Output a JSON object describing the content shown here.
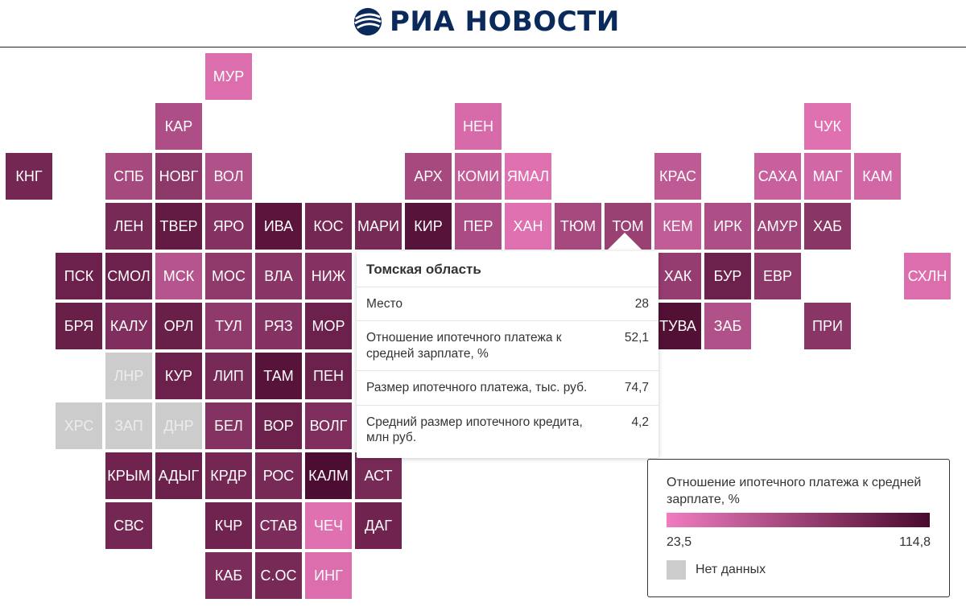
{
  "header": {
    "logo_text": "РИА НОВОСТИ",
    "brand_color": "#0b2a5c"
  },
  "colors": {
    "scale_low": "#f07cc0",
    "scale_high": "#4a0a2e",
    "no_data": "#cccccc"
  },
  "regions": [
    {
      "label": "МУР",
      "col": 4,
      "row": 0,
      "shade": 0.12
    },
    {
      "label": "КАР",
      "col": 3,
      "row": 1,
      "shade": 0.4
    },
    {
      "label": "НЕН",
      "col": 9,
      "row": 1,
      "shade": 0.15
    },
    {
      "label": "ЧУК",
      "col": 16,
      "row": 1,
      "shade": 0.1
    },
    {
      "label": "КНГ",
      "col": 0,
      "row": 2,
      "shade": 0.75
    },
    {
      "label": "СПБ",
      "col": 2,
      "row": 2,
      "shade": 0.45
    },
    {
      "label": "НОВГ",
      "col": 3,
      "row": 2,
      "shade": 0.6
    },
    {
      "label": "ВОЛ",
      "col": 4,
      "row": 2,
      "shade": 0.38
    },
    {
      "label": "АРХ",
      "col": 8,
      "row": 2,
      "shade": 0.45
    },
    {
      "label": "КОМИ",
      "col": 9,
      "row": 2,
      "shade": 0.28
    },
    {
      "label": "ЯМАЛ",
      "col": 10,
      "row": 2,
      "shade": 0.1
    },
    {
      "label": "КРАС",
      "col": 13,
      "row": 2,
      "shade": 0.3
    },
    {
      "label": "САХА",
      "col": 15,
      "row": 2,
      "shade": 0.25
    },
    {
      "label": "МАГ",
      "col": 16,
      "row": 2,
      "shade": 0.18
    },
    {
      "label": "КАМ",
      "col": 17,
      "row": 2,
      "shade": 0.18
    },
    {
      "label": "ЛЕН",
      "col": 2,
      "row": 3,
      "shade": 0.72
    },
    {
      "label": "ТВЕР",
      "col": 3,
      "row": 3,
      "shade": 0.85
    },
    {
      "label": "ЯРО",
      "col": 4,
      "row": 3,
      "shade": 0.65
    },
    {
      "label": "ИВА",
      "col": 5,
      "row": 3,
      "shade": 0.9
    },
    {
      "label": "КОС",
      "col": 6,
      "row": 3,
      "shade": 0.75
    },
    {
      "label": "МАРИ",
      "col": 7,
      "row": 3,
      "shade": 0.72
    },
    {
      "label": "КИР",
      "col": 8,
      "row": 3,
      "shade": 0.92
    },
    {
      "label": "ПЕР",
      "col": 9,
      "row": 3,
      "shade": 0.42
    },
    {
      "label": "ХАН",
      "col": 10,
      "row": 3,
      "shade": 0.1
    },
    {
      "label": "ТЮМ",
      "col": 11,
      "row": 3,
      "shade": 0.45
    },
    {
      "label": "ТОМ",
      "col": 12,
      "row": 3,
      "shade": 0.52
    },
    {
      "label": "КЕМ",
      "col": 13,
      "row": 3,
      "shade": 0.28
    },
    {
      "label": "ИРК",
      "col": 14,
      "row": 3,
      "shade": 0.4
    },
    {
      "label": "АМУР",
      "col": 15,
      "row": 3,
      "shade": 0.5
    },
    {
      "label": "ХАБ",
      "col": 16,
      "row": 3,
      "shade": 0.62
    },
    {
      "label": "ПСК",
      "col": 1,
      "row": 4,
      "shade": 0.8
    },
    {
      "label": "СМОЛ",
      "col": 2,
      "row": 4,
      "shade": 0.8
    },
    {
      "label": "МСК",
      "col": 3,
      "row": 4,
      "shade": 0.35
    },
    {
      "label": "МОС",
      "col": 4,
      "row": 4,
      "shade": 0.58
    },
    {
      "label": "ВЛА",
      "col": 5,
      "row": 4,
      "shade": 0.62
    },
    {
      "label": "НИЖ",
      "col": 6,
      "row": 4,
      "shade": 0.65
    },
    {
      "label": "ХАК",
      "col": 13,
      "row": 4,
      "shade": 0.55
    },
    {
      "label": "БУР",
      "col": 14,
      "row": 4,
      "shade": 0.8
    },
    {
      "label": "ЕВР",
      "col": 15,
      "row": 4,
      "shade": 0.6
    },
    {
      "label": "СХЛН",
      "col": 18,
      "row": 4,
      "shade": 0.12
    },
    {
      "label": "БРЯ",
      "col": 1,
      "row": 5,
      "shade": 0.82
    },
    {
      "label": "КАЛУ",
      "col": 2,
      "row": 5,
      "shade": 0.68
    },
    {
      "label": "ОРЛ",
      "col": 3,
      "row": 5,
      "shade": 0.82
    },
    {
      "label": "ТУЛ",
      "col": 4,
      "row": 5,
      "shade": 0.58
    },
    {
      "label": "РЯЗ",
      "col": 5,
      "row": 5,
      "shade": 0.65
    },
    {
      "label": "МОР",
      "col": 6,
      "row": 5,
      "shade": 0.8
    },
    {
      "label": "ТУВА",
      "col": 13,
      "row": 5,
      "shade": 0.95
    },
    {
      "label": "ЗАБ",
      "col": 14,
      "row": 5,
      "shade": 0.38
    },
    {
      "label": "ПРИ",
      "col": 16,
      "row": 5,
      "shade": 0.62
    },
    {
      "label": "ЛНР",
      "col": 2,
      "row": 6,
      "shade": null
    },
    {
      "label": "КУР",
      "col": 3,
      "row": 6,
      "shade": 0.8
    },
    {
      "label": "ЛИП",
      "col": 4,
      "row": 6,
      "shade": 0.72
    },
    {
      "label": "ТАМ",
      "col": 5,
      "row": 6,
      "shade": 0.92
    },
    {
      "label": "ПЕН",
      "col": 6,
      "row": 6,
      "shade": 0.8
    },
    {
      "label": "ХРС",
      "col": 1,
      "row": 7,
      "shade": null
    },
    {
      "label": "ЗАП",
      "col": 2,
      "row": 7,
      "shade": null
    },
    {
      "label": "ДНР",
      "col": 3,
      "row": 7,
      "shade": null
    },
    {
      "label": "БЕЛ",
      "col": 4,
      "row": 7,
      "shade": 0.65
    },
    {
      "label": "ВОР",
      "col": 5,
      "row": 7,
      "shade": 0.8
    },
    {
      "label": "ВОЛГ",
      "col": 6,
      "row": 7,
      "shade": 0.68
    },
    {
      "label": "КРЫМ",
      "col": 2,
      "row": 8,
      "shade": 0.78
    },
    {
      "label": "АДЫГ",
      "col": 3,
      "row": 8,
      "shade": 0.8
    },
    {
      "label": "КРДР",
      "col": 4,
      "row": 8,
      "shade": 0.75
    },
    {
      "label": "РОС",
      "col": 5,
      "row": 8,
      "shade": 0.72
    },
    {
      "label": "КАЛМ",
      "col": 6,
      "row": 8,
      "shade": 0.98
    },
    {
      "label": "АСТ",
      "col": 7,
      "row": 8,
      "shade": 0.72
    },
    {
      "label": "СВС",
      "col": 2,
      "row": 9,
      "shade": 0.75
    },
    {
      "label": "КЧР",
      "col": 4,
      "row": 9,
      "shade": 0.78
    },
    {
      "label": "СТАВ",
      "col": 5,
      "row": 9,
      "shade": 0.7
    },
    {
      "label": "ЧЕЧ",
      "col": 6,
      "row": 9,
      "shade": 0.1
    },
    {
      "label": "ДАГ",
      "col": 7,
      "row": 9,
      "shade": 0.78
    },
    {
      "label": "КАБ",
      "col": 4,
      "row": 10,
      "shade": 0.7
    },
    {
      "label": "С.ОС",
      "col": 5,
      "row": 10,
      "shade": 0.72
    },
    {
      "label": "ИНГ",
      "col": 6,
      "row": 10,
      "shade": 0.12
    }
  ],
  "tooltip": {
    "title": "Томская область",
    "rows": [
      {
        "label": "Место",
        "value": "28"
      },
      {
        "label": "Отношение ипотечного платежа к средней зарплате, %",
        "value": "52,1"
      },
      {
        "label": "Размер ипотечного платежа, тыс. руб.",
        "value": "74,7"
      },
      {
        "label": "Средний размер ипотечного кредита, млн руб.",
        "value": "4,2"
      }
    ]
  },
  "legend": {
    "title": "Отношение ипотечного платежа к средней зарплате, %",
    "min": "23,5",
    "max": "114,8",
    "no_data_label": "Нет данных"
  }
}
